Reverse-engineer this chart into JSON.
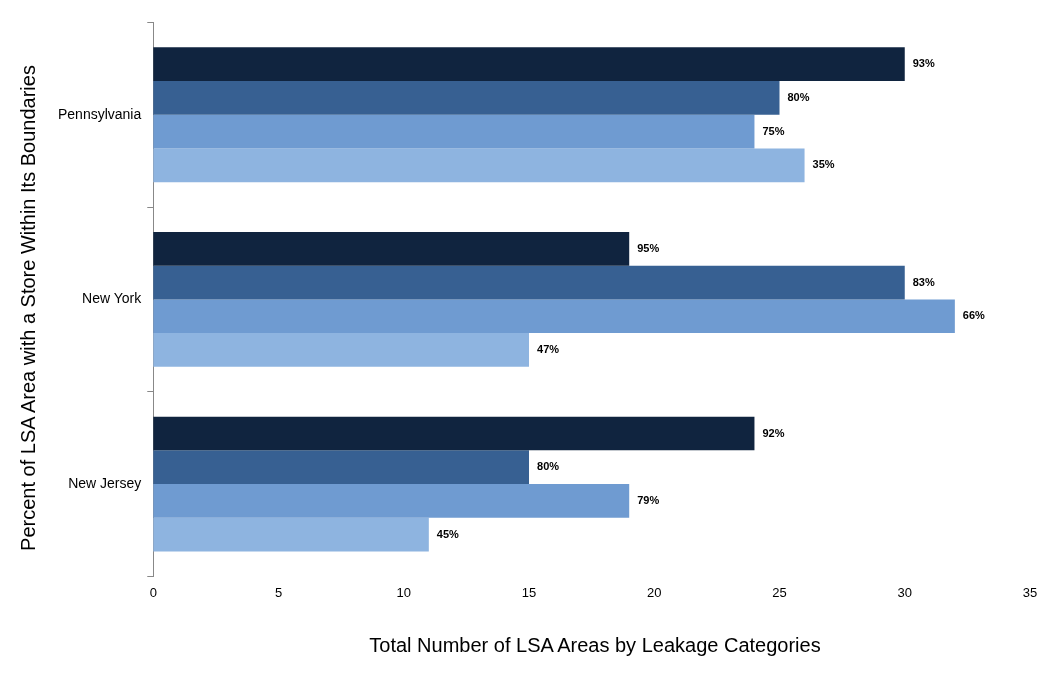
{
  "chart_data": {
    "type": "bar",
    "orientation": "horizontal",
    "xlabel": "Total Number of LSA Areas by Leakage Categories",
    "ylabel": "Percent of LSA Area with a Store Within Its Boundaries",
    "categories": [
      "Pennsylvania",
      "New York",
      "New Jersey"
    ],
    "series": [
      {
        "color": "#10243f",
        "values": [
          30,
          19,
          24
        ]
      },
      {
        "color": "#376092",
        "values": [
          25,
          30,
          15
        ]
      },
      {
        "color": "#6f9bd1",
        "values": [
          24,
          32,
          19
        ]
      },
      {
        "color": "#8eb4e0",
        "values": [
          26,
          15,
          11
        ]
      }
    ],
    "annotations": [
      "93%",
      "80%",
      "75%",
      "35%",
      "95%",
      "83%",
      "66%",
      "47%",
      "92%",
      "80%",
      "79%",
      "45%"
    ],
    "xlim": [
      0,
      35
    ],
    "xticks": [
      0,
      5,
      10,
      15,
      20,
      25,
      30,
      35
    ],
    "grid": false,
    "legend": false
  }
}
